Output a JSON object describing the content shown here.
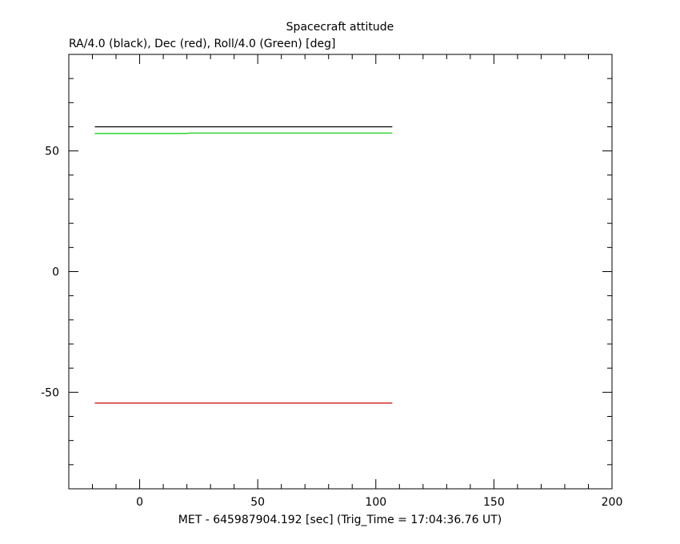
{
  "chart_data": {
    "type": "line",
    "title": "Spacecraft attitude",
    "subtitle": "RA/4.0 (black), Dec (red), Roll/4.0 (Green) [deg]",
    "xlabel": "MET - 645987904.192 [sec] (Trig_Time = 17:04:36.76 UT)",
    "ylabel": "",
    "xlim": [
      -30,
      200
    ],
    "ylim": [
      -90,
      90
    ],
    "x_ticks": [
      0,
      50,
      100,
      150,
      200
    ],
    "y_ticks": [
      -50,
      0,
      50
    ],
    "grid": false,
    "series": [
      {
        "color": "#000000",
        "x": [
          -19,
          107
        ],
        "y": [
          60.0,
          60.0
        ]
      },
      {
        "color": "#00cc00",
        "x": [
          -19,
          20,
          21,
          107
        ],
        "y": [
          57.2,
          57.2,
          57.4,
          57.4
        ]
      },
      {
        "color": "#cc0000",
        "x": [
          -19,
          107
        ],
        "y": [
          -54.5,
          -54.5
        ]
      }
    ]
  }
}
